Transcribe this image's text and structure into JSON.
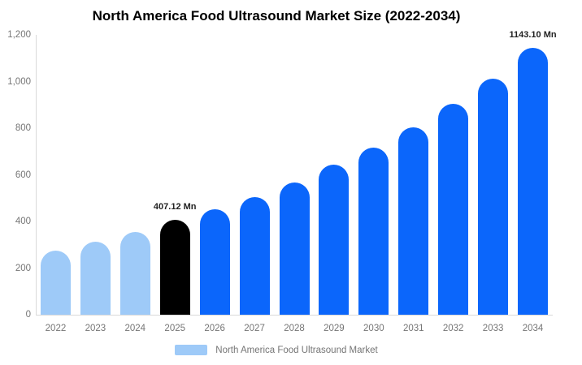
{
  "chart_data": {
    "type": "bar",
    "title": "North America Food Ultrasound Market Size (2022-2034)",
    "categories": [
      "2022",
      "2023",
      "2024",
      "2025",
      "2026",
      "2027",
      "2028",
      "2029",
      "2030",
      "2031",
      "2032",
      "2033",
      "2034"
    ],
    "series": [
      {
        "name": "North America Food Ultrasound Market",
        "values": [
          275,
          314,
          355,
          407.12,
          452,
          504,
          568,
          645,
          718,
          805,
          904,
          1012,
          1143.1
        ]
      }
    ],
    "unit": "Mn",
    "ylim": [
      0,
      1200
    ],
    "y_ticks": [
      {
        "value": 1200,
        "label": "1,200"
      },
      {
        "value": 1000,
        "label": "1,000"
      },
      {
        "value": 800,
        "label": "800"
      },
      {
        "value": 600,
        "label": "600"
      },
      {
        "value": 400,
        "label": "400"
      },
      {
        "value": 200,
        "label": "200"
      },
      {
        "value": 0,
        "label": "0"
      }
    ],
    "grid": "off",
    "legend_position": "bottom",
    "data_labels": [
      {
        "category": "2025",
        "text": "407.12 Mn"
      },
      {
        "category": "2034",
        "text": "1143.10 Mn"
      }
    ],
    "bar_color_keys": [
      "historical",
      "historical",
      "historical",
      "highlight",
      "forecast",
      "forecast",
      "forecast",
      "forecast",
      "forecast",
      "forecast",
      "forecast",
      "forecast",
      "forecast"
    ],
    "colors": {
      "historical": "#9ecaf8",
      "highlight": "#000000",
      "forecast": "#0b66fb",
      "axis_text": "#757575",
      "axis_line": "#d9d9d9",
      "data_label_text": "#222222",
      "title_text": "#000000"
    }
  },
  "legend": {
    "label": "North America Food Ultrasound Market"
  }
}
